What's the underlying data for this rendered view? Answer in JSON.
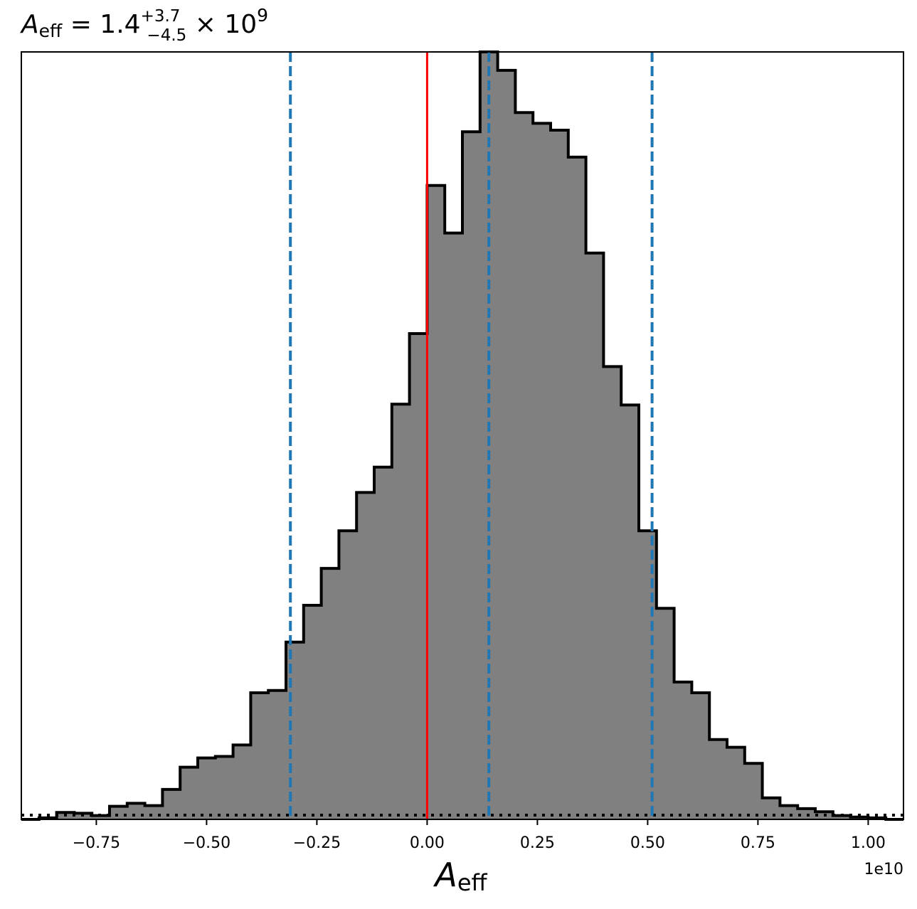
{
  "chart_data": {
    "type": "bar",
    "title": {
      "symbol": "A",
      "subscript": "eff",
      "equals": " = ",
      "value": "1.4",
      "upper": "+3.7",
      "lower": "−4.5",
      "times": " × ",
      "base": "10",
      "exponent": "9"
    },
    "xlabel": {
      "symbol": "A",
      "subscript": "eff"
    },
    "x_offset_label": "1e10",
    "xlim": [
      -0.92,
      1.08
    ],
    "ylim": [
      0,
      1.0
    ],
    "xticks": [
      -0.75,
      -0.5,
      -0.25,
      0.0,
      0.25,
      0.5,
      0.75,
      1.0
    ],
    "xtick_labels": [
      "−0.75",
      "−0.50",
      "−0.25",
      "0.00",
      "0.25",
      "0.50",
      "0.75",
      "1.00"
    ],
    "bin_start": -0.92,
    "bin_width": 0.04,
    "counts": [
      0.0,
      0.002,
      0.009,
      0.008,
      0.005,
      0.017,
      0.021,
      0.018,
      0.039,
      0.068,
      0.08,
      0.082,
      0.097,
      0.165,
      0.168,
      0.231,
      0.279,
      0.327,
      0.376,
      0.426,
      0.459,
      0.541,
      0.633,
      0.826,
      0.764,
      0.896,
      1.0,
      0.976,
      0.921,
      0.907,
      0.898,
      0.863,
      0.738,
      0.59,
      0.54,
      0.376,
      0.275,
      0.179,
      0.165,
      0.104,
      0.094,
      0.073,
      0.028,
      0.018,
      0.014,
      0.01,
      0.005,
      0.003,
      0.002,
      0.0
    ],
    "vlines": [
      {
        "x": 0.0,
        "color": "#ff0000",
        "style": "solid"
      },
      {
        "x": -0.31,
        "color": "#1f77b4",
        "style": "dashed"
      },
      {
        "x": 0.14,
        "color": "#1f77b4",
        "style": "dashed"
      },
      {
        "x": 0.51,
        "color": "#1f77b4",
        "style": "dashed"
      }
    ],
    "baseline_dotted": true,
    "fill_color": "#808080",
    "edge_color": "#000000",
    "grid": false
  }
}
